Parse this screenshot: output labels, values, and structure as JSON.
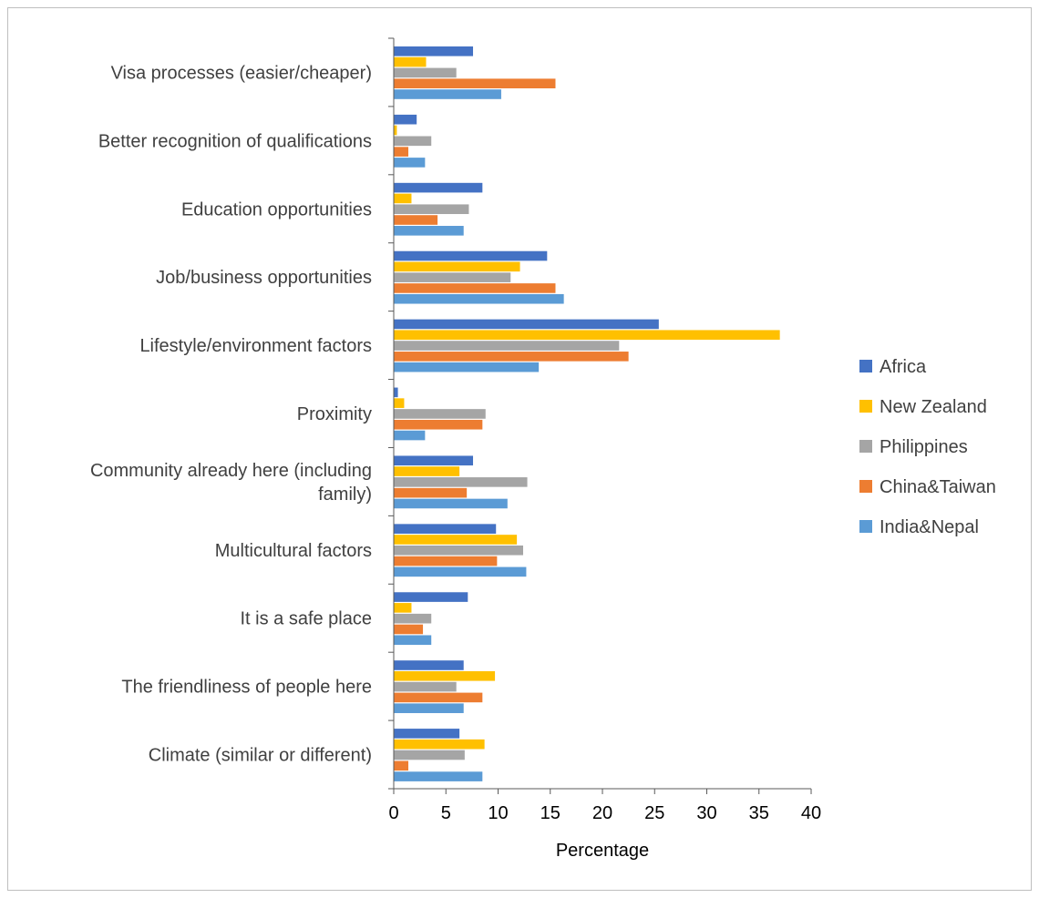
{
  "chart_data": {
    "type": "bar",
    "orientation": "horizontal",
    "title": "",
    "xlabel": "Percentage",
    "ylabel": "",
    "xlim": [
      0,
      40
    ],
    "x_ticks": [
      "0",
      "5",
      "10",
      "15",
      "20",
      "25",
      "30",
      "35",
      "40"
    ],
    "grid": false,
    "legend_position": "right",
    "categories": [
      "Visa processes (easier/cheaper)",
      "Better recognition of qualifications",
      "Education opportunities",
      "Job/business opportunities",
      "Lifestyle/environment factors",
      "Proximity",
      "Community already here (including family)",
      "Multicultural factors",
      "It is a safe place",
      "The friendliness of people here",
      "Climate (similar or different)"
    ],
    "series": [
      {
        "name": "Africa",
        "color": "#4472C4",
        "values": [
          7.6,
          2.2,
          8.5,
          14.7,
          25.4,
          0.4,
          7.6,
          9.8,
          7.1,
          6.7,
          6.3
        ]
      },
      {
        "name": "New Zealand",
        "color": "#FFC000",
        "values": [
          3.1,
          0.3,
          1.7,
          12.1,
          37.0,
          1.0,
          6.3,
          11.8,
          1.7,
          9.7,
          8.7
        ]
      },
      {
        "name": "Philippines",
        "color": "#A5A5A5",
        "values": [
          6.0,
          3.6,
          7.2,
          11.2,
          21.6,
          8.8,
          12.8,
          12.4,
          3.6,
          6.0,
          6.8
        ]
      },
      {
        "name": "China&Taiwan",
        "color": "#ED7D31",
        "values": [
          15.5,
          1.4,
          4.2,
          15.5,
          22.5,
          8.5,
          7.0,
          9.9,
          2.8,
          8.5,
          1.4
        ]
      },
      {
        "name": "India&Nepal",
        "color": "#5B9BD5",
        "values": [
          10.3,
          3.0,
          6.7,
          16.3,
          13.9,
          3.0,
          10.9,
          12.7,
          3.6,
          6.7,
          8.5
        ]
      }
    ]
  }
}
